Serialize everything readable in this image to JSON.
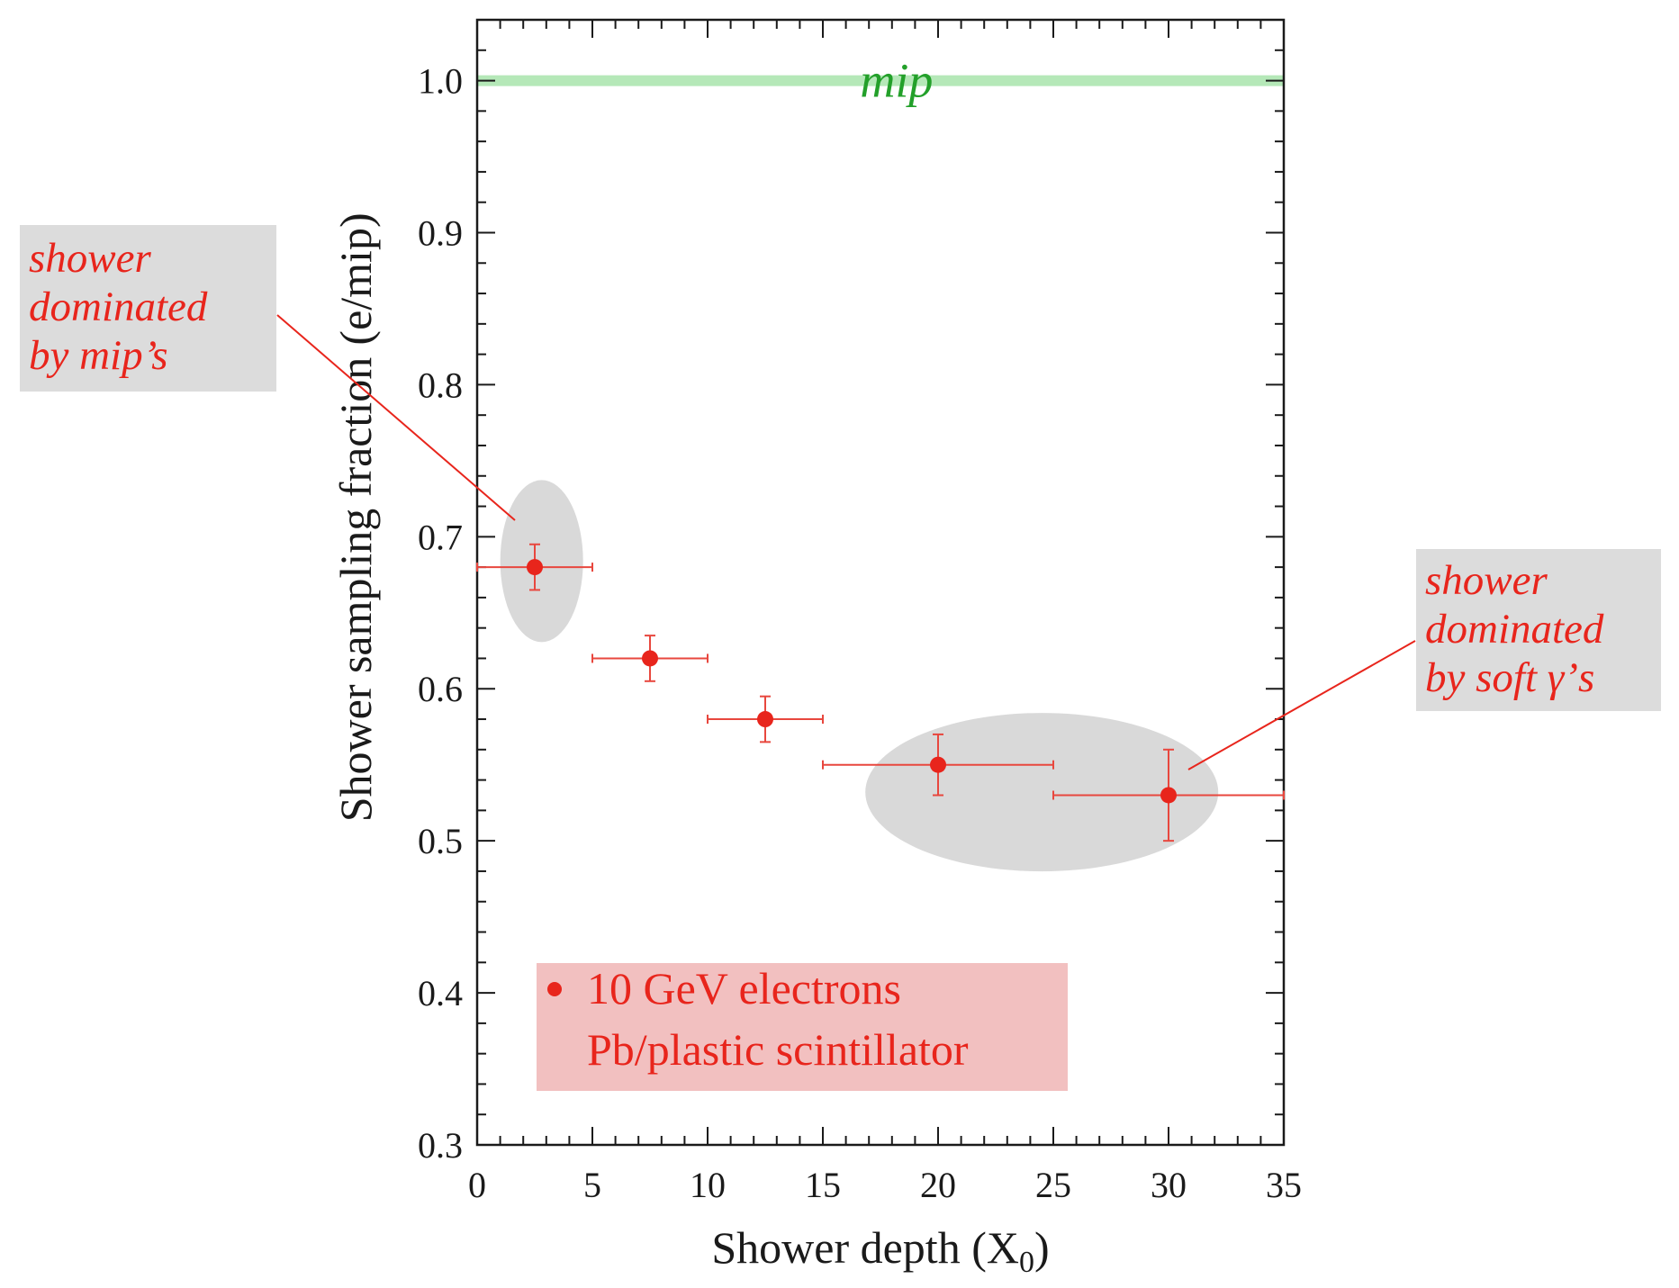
{
  "chart_data": {
    "type": "scatter",
    "xlabel": "Shower depth (X",
    "xlabel_subscript": "0",
    "xlabel_suffix": ")",
    "ylabel_main": "Shower sampling fraction",
    "ylabel_unit": "(e/mip)",
    "xlim": [
      0,
      35
    ],
    "ylim": [
      0.3,
      1.04
    ],
    "x_ticks": [
      0,
      5,
      10,
      15,
      20,
      25,
      30,
      35
    ],
    "y_ticks": [
      0.3,
      0.4,
      0.5,
      0.6,
      0.7,
      0.8,
      0.9,
      1.0
    ],
    "grid": false,
    "series": [
      {
        "name": "10 GeV electrons Pb/plastic scintillator",
        "points": [
          {
            "x": 2.5,
            "y": 0.68,
            "x_err": 2.5,
            "y_err": 0.015
          },
          {
            "x": 7.5,
            "y": 0.62,
            "x_err": 2.5,
            "y_err": 0.015
          },
          {
            "x": 12.5,
            "y": 0.58,
            "x_err": 2.5,
            "y_err": 0.015
          },
          {
            "x": 20,
            "y": 0.55,
            "x_err": 5,
            "y_err": 0.02
          },
          {
            "x": 30,
            "y": 0.53,
            "x_err": 5,
            "y_err": 0.03
          }
        ]
      }
    ],
    "reference_line": {
      "y": 1.0,
      "label": "mip"
    },
    "legend": {
      "lines": [
        "10 GeV electrons",
        "Pb/plastic scintillator"
      ],
      "position": "bottom-left"
    },
    "annotations": [
      {
        "lines": [
          "shower",
          "dominated",
          "by mip’s"
        ],
        "position": "left",
        "points_to_x": 2.5,
        "points_to_y": 0.68
      },
      {
        "lines": [
          "shower",
          "dominated",
          "by soft γ’s"
        ],
        "position": "right",
        "points_to_x": 30,
        "points_to_y": 0.53
      }
    ],
    "colors": {
      "points": "#e8251c",
      "error_bars": "#e8473e",
      "reference": "#b5e8b8",
      "reference_label": "#23a02a",
      "annotation_text": "#e8251c",
      "annotation_bg": "#dcdcdc",
      "highlight_ellipse": "#d9d9d9",
      "legend_bg": "#f2c0c0",
      "axis": "#1a1a1a"
    }
  }
}
